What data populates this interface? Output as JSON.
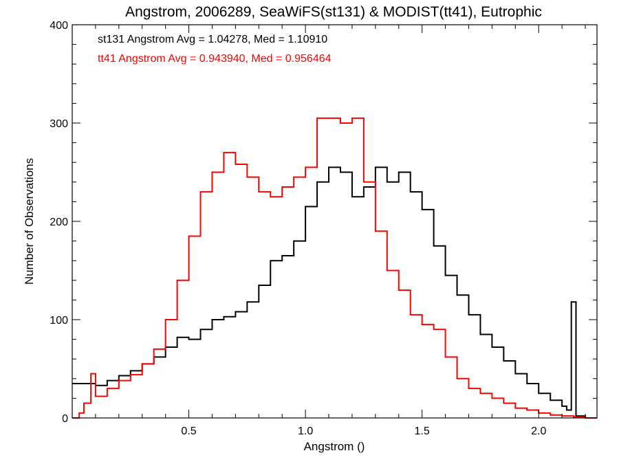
{
  "chart_data": {
    "type": "line",
    "title": "Angstrom, 2006289, SeaWiFS(st131) & MODIST(tt41), Eutrophic",
    "xlabel": "Angstrom ()",
    "ylabel": "Number of Observations",
    "xlim": [
      0.0,
      2.25
    ],
    "ylim": [
      0,
      400
    ],
    "x_ticks": [
      0.5,
      1.0,
      1.5,
      2.0
    ],
    "x_tick_labels": [
      "0.5",
      "1.0",
      "1.5",
      "2.0"
    ],
    "y_ticks": [
      0,
      100,
      200,
      300,
      400
    ],
    "y_tick_labels": [
      "0",
      "100",
      "200",
      "300",
      "400"
    ],
    "grid": false,
    "style": "step",
    "annotations": [
      {
        "text": "st131 Angstrom Avg = 1.04278, Med = 1.10910",
        "color": "#000000"
      },
      {
        "text": "tt41 Angstrom Avg = 0.943940, Med = 0.956464",
        "color": "#ff0000"
      }
    ],
    "series": [
      {
        "color": "#000000",
        "points": [
          [
            0.0,
            35
          ],
          [
            0.05,
            35
          ],
          [
            0.1,
            33
          ],
          [
            0.15,
            38
          ],
          [
            0.2,
            43
          ],
          [
            0.25,
            48
          ],
          [
            0.3,
            55
          ],
          [
            0.35,
            62
          ],
          [
            0.4,
            72
          ],
          [
            0.45,
            82
          ],
          [
            0.5,
            80
          ],
          [
            0.55,
            90
          ],
          [
            0.6,
            100
          ],
          [
            0.65,
            103
          ],
          [
            0.7,
            108
          ],
          [
            0.75,
            118
          ],
          [
            0.8,
            135
          ],
          [
            0.85,
            160
          ],
          [
            0.9,
            165
          ],
          [
            0.95,
            180
          ],
          [
            1.0,
            215
          ],
          [
            1.05,
            240
          ],
          [
            1.1,
            255
          ],
          [
            1.15,
            250
          ],
          [
            1.2,
            225
          ],
          [
            1.25,
            235
          ],
          [
            1.3,
            255
          ],
          [
            1.35,
            240
          ],
          [
            1.4,
            250
          ],
          [
            1.45,
            230
          ],
          [
            1.5,
            212
          ],
          [
            1.55,
            175
          ],
          [
            1.6,
            145
          ],
          [
            1.65,
            125
          ],
          [
            1.7,
            105
          ],
          [
            1.75,
            85
          ],
          [
            1.8,
            72
          ],
          [
            1.85,
            58
          ],
          [
            1.9,
            45
          ],
          [
            1.95,
            35
          ],
          [
            2.0,
            25
          ],
          [
            2.05,
            18
          ],
          [
            2.1,
            12
          ],
          [
            2.12,
            8
          ],
          [
            2.14,
            118
          ],
          [
            2.16,
            2
          ],
          [
            2.2,
            0
          ],
          [
            2.25,
            0
          ]
        ]
      },
      {
        "color": "#ff0000",
        "points": [
          [
            0.0,
            0
          ],
          [
            0.03,
            5
          ],
          [
            0.05,
            15
          ],
          [
            0.08,
            45
          ],
          [
            0.1,
            22
          ],
          [
            0.15,
            30
          ],
          [
            0.2,
            38
          ],
          [
            0.25,
            44
          ],
          [
            0.3,
            55
          ],
          [
            0.35,
            70
          ],
          [
            0.4,
            100
          ],
          [
            0.45,
            140
          ],
          [
            0.5,
            185
          ],
          [
            0.55,
            230
          ],
          [
            0.6,
            250
          ],
          [
            0.65,
            270
          ],
          [
            0.7,
            258
          ],
          [
            0.75,
            245
          ],
          [
            0.8,
            230
          ],
          [
            0.85,
            225
          ],
          [
            0.9,
            235
          ],
          [
            0.95,
            245
          ],
          [
            1.0,
            255
          ],
          [
            1.05,
            305
          ],
          [
            1.1,
            305
          ],
          [
            1.15,
            300
          ],
          [
            1.2,
            305
          ],
          [
            1.25,
            240
          ],
          [
            1.3,
            190
          ],
          [
            1.35,
            150
          ],
          [
            1.4,
            130
          ],
          [
            1.45,
            105
          ],
          [
            1.5,
            95
          ],
          [
            1.55,
            90
          ],
          [
            1.6,
            62
          ],
          [
            1.65,
            40
          ],
          [
            1.7,
            30
          ],
          [
            1.75,
            25
          ],
          [
            1.8,
            20
          ],
          [
            1.85,
            15
          ],
          [
            1.9,
            10
          ],
          [
            1.95,
            8
          ],
          [
            2.0,
            5
          ],
          [
            2.05,
            3
          ],
          [
            2.1,
            2
          ],
          [
            2.15,
            1
          ],
          [
            2.2,
            0
          ],
          [
            2.25,
            0
          ]
        ]
      }
    ]
  }
}
